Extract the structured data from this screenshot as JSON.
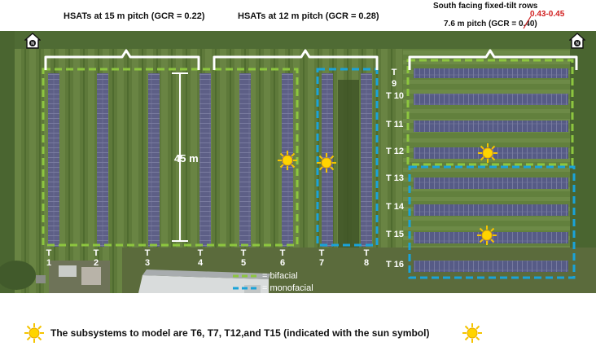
{
  "labels": {
    "hsat15": "HSATs at 15 m pitch (GCR = 0.22)",
    "hsat12": "HSATs at 12 m pitch (GCR = 0.28)",
    "fixed_line1": "South facing fixed-tilt rows",
    "fixed_line2": "7.6 m pitch (GCR = 0.40)",
    "gcr_correction": "0.43-0.45",
    "distance": "45 m"
  },
  "trackers": [
    {
      "top": "T",
      "num": "1"
    },
    {
      "top": "T",
      "num": "2"
    },
    {
      "top": "T",
      "num": "3"
    },
    {
      "top": "T",
      "num": "4"
    },
    {
      "top": "T",
      "num": "5"
    },
    {
      "top": "T",
      "num": "6"
    },
    {
      "top": "T",
      "num": "7"
    },
    {
      "top": "T",
      "num": "8"
    }
  ],
  "fixed_rows": [
    {
      "label": "T 9"
    },
    {
      "label": "T 10"
    },
    {
      "label": "T 11"
    },
    {
      "label": "T 12"
    },
    {
      "label": "T 13"
    },
    {
      "label": "T 14"
    },
    {
      "label": "T 15"
    },
    {
      "label": "T 16"
    }
  ],
  "legend": {
    "bifacial": "= bifacial",
    "monofacial": "= monofacial",
    "bifacial_color": "#8dc63f",
    "monofacial_color": "#1aa3d9"
  },
  "caption": "The subsystems to model are T6, T7, T12,and  T15 (indicated with the sun symbol)",
  "icons": {
    "north": "north-compass-icon",
    "sun": "sun-icon"
  }
}
